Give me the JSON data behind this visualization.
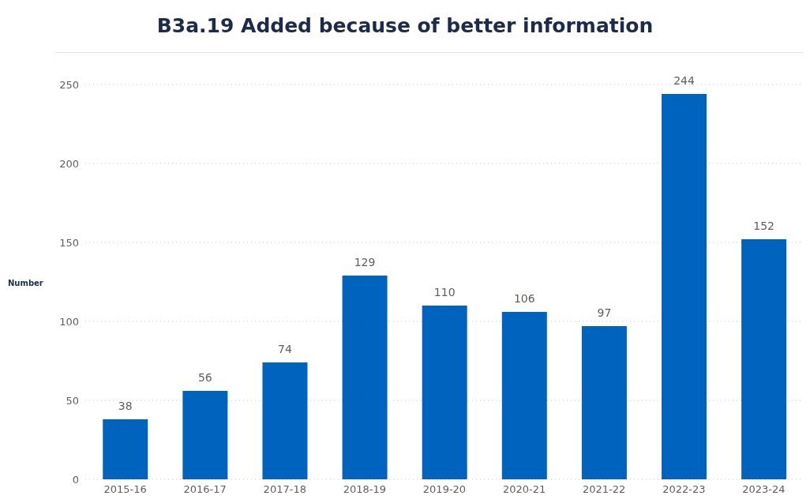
{
  "chart_data": {
    "type": "bar",
    "title": "B3a.19 Added because of better information",
    "ylabel": "Number",
    "categories": [
      "2015-16",
      "2016-17",
      "2017-18",
      "2018-19",
      "2019-20",
      "2020-21",
      "2021-22",
      "2022-23",
      "2023-24"
    ],
    "values": [
      38,
      56,
      74,
      129,
      110,
      106,
      97,
      244,
      152
    ],
    "color": "#0063be",
    "ylim": [
      0,
      250
    ],
    "yticks": [
      0,
      50,
      100,
      150,
      200,
      250
    ],
    "grid": "y",
    "data_labels": true,
    "legend": false
  }
}
